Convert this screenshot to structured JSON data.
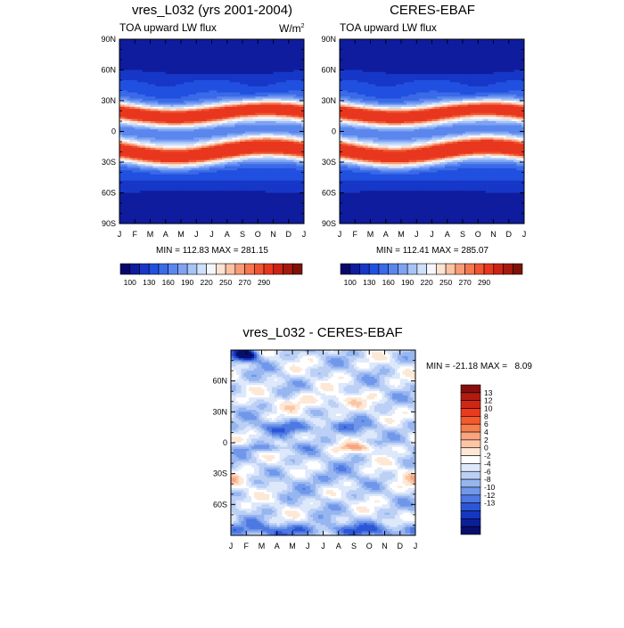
{
  "chart_data": [
    {
      "type": "heatmap",
      "title": "vres_L032 (yrs 2001-2004)",
      "subtitle": "TOA upward LW flux",
      "units": "W/m",
      "units_sup": "2",
      "x_labels": [
        "J",
        "F",
        "M",
        "A",
        "M",
        "J",
        "J",
        "A",
        "S",
        "O",
        "N",
        "D",
        "J"
      ],
      "y_labels": [
        "90N",
        "60N",
        "30N",
        "0",
        "30S",
        "60S",
        "90S"
      ],
      "ylim": [
        -90,
        90
      ],
      "stats": "MIN = 112.83 MAX = 281.15",
      "min": 112.83,
      "max": 281.15,
      "colorbar": {
        "tick_labels": [
          "100",
          "130",
          "160",
          "190",
          "220",
          "250",
          "270",
          "290"
        ],
        "levels": [
          100,
          115,
          130,
          145,
          160,
          175,
          190,
          205,
          220,
          235,
          250,
          260,
          270,
          280,
          290
        ],
        "colors": [
          "#08086b",
          "#0f1c9e",
          "#1637c7",
          "#2150e0",
          "#3a6ae8",
          "#5a86ee",
          "#7fa3f2",
          "#a8c4f6",
          "#cfe0fa",
          "#f5f7fd",
          "#fde3d2",
          "#fbc2a4",
          "#f89c78",
          "#f5764f",
          "#ef5530",
          "#e8371e",
          "#cc2414",
          "#a51a0e",
          "#7e1208"
        ]
      }
    },
    {
      "type": "heatmap",
      "title": "CERES-EBAF",
      "subtitle": "TOA upward LW flux",
      "x_labels": [
        "J",
        "F",
        "M",
        "A",
        "M",
        "J",
        "J",
        "A",
        "S",
        "O",
        "N",
        "D",
        "J"
      ],
      "y_labels": [
        "90N",
        "60N",
        "30N",
        "0",
        "30S",
        "60S",
        "90S"
      ],
      "ylim": [
        -90,
        90
      ],
      "stats": "MIN = 112.41 MAX = 285.07",
      "min": 112.41,
      "max": 285.07,
      "colorbar": {
        "tick_labels": [
          "100",
          "130",
          "160",
          "190",
          "220",
          "250",
          "270",
          "290"
        ]
      }
    },
    {
      "type": "heatmap",
      "title": "vres_L032 - CERES-EBAF",
      "x_labels": [
        "J",
        "F",
        "M",
        "A",
        "M",
        "J",
        "J",
        "A",
        "S",
        "O",
        "N",
        "D",
        "J"
      ],
      "y_labels": [
        "60N",
        "30N",
        "0",
        "30S",
        "60S"
      ],
      "ylim": [
        -90,
        90
      ],
      "stats": "MIN = -21.18 MAX =   8.09",
      "min": -21.18,
      "max": 8.09,
      "colorbar": {
        "tick_labels": [
          "13",
          "12",
          "10",
          "8",
          "6",
          "4",
          "2",
          "0",
          "-2",
          "-4",
          "-6",
          "-8",
          "-10",
          "-12",
          "-13"
        ],
        "colors": [
          "#880e0e",
          "#b01c10",
          "#d22614",
          "#ec3a1c",
          "#f45a2c",
          "#f77e4e",
          "#f9a47e",
          "#fbc6a6",
          "#fde8d6",
          "#ffffff",
          "#dde8fb",
          "#bcd0f6",
          "#97b6f0",
          "#7097ea",
          "#4e78e2",
          "#2c56d8",
          "#1636c2",
          "#0c1f9a",
          "#070f6d"
        ]
      }
    }
  ]
}
